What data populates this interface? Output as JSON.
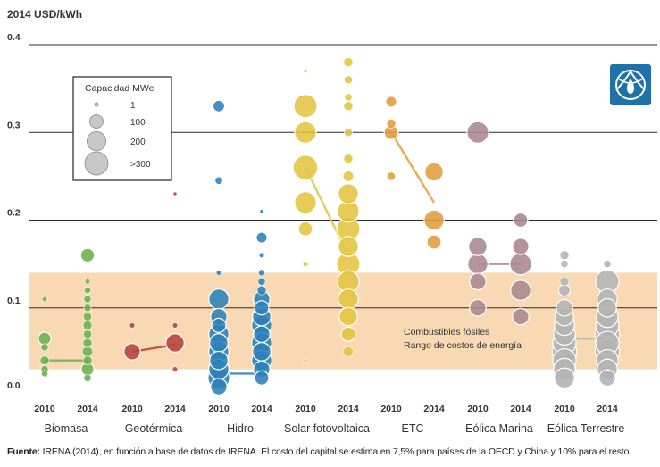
{
  "chart_data": {
    "type": "scatter",
    "unit_label": "2014 USD/kWh",
    "ylim": [
      0,
      0.4
    ],
    "yticks": [
      {
        "value": 0.4,
        "label": "0.4"
      },
      {
        "value": 0.3,
        "label": "0.3"
      },
      {
        "value": 0.2,
        "label": "0.2"
      },
      {
        "value": 0.1,
        "label": "0.1"
      },
      {
        "value": 0.0,
        "label": "0.0"
      }
    ],
    "grid": true,
    "fossil_band": {
      "range": [
        0.03,
        0.14
      ],
      "color": "#f8d9b4",
      "label_line1": "Combustibles fósiles",
      "label_line2": "Rango de costos de energía"
    },
    "legend": {
      "title": "Capacidad MWe",
      "placement": "top-left",
      "entries": [
        {
          "label": "1",
          "mwe": 1
        },
        {
          "label": "100",
          "mwe": 100
        },
        {
          "label": "200",
          "mwe": 200
        },
        {
          "label": ">300",
          "mwe": 300
        }
      ]
    },
    "categories": [
      {
        "name": "Biomasa",
        "color": "#6ab04c",
        "years": [
          "2010",
          "2014"
        ],
        "weighted_avg": [
          0.04,
          0.04
        ],
        "points_2010": [
          [
            0.11,
            20
          ],
          [
            0.065,
            120
          ],
          [
            0.055,
            40
          ],
          [
            0.04,
            60
          ],
          [
            0.03,
            40
          ],
          [
            0.025,
            30
          ]
        ],
        "points_2014": [
          [
            0.16,
            140
          ],
          [
            0.13,
            20
          ],
          [
            0.12,
            30
          ],
          [
            0.11,
            40
          ],
          [
            0.1,
            40
          ],
          [
            0.09,
            50
          ],
          [
            0.08,
            60
          ],
          [
            0.07,
            50
          ],
          [
            0.06,
            60
          ],
          [
            0.05,
            80
          ],
          [
            0.04,
            60
          ],
          [
            0.03,
            120
          ],
          [
            0.02,
            40
          ]
        ]
      },
      {
        "name": "Geotérmica",
        "color": "#b5423d",
        "years": [
          "2010",
          "2014"
        ],
        "weighted_avg": [
          0.05,
          0.058
        ],
        "points_2010": [
          [
            0.08,
            20
          ],
          [
            0.05,
            200
          ]
        ],
        "points_2014": [
          [
            0.08,
            20
          ],
          [
            0.06,
            250
          ],
          [
            0.03,
            20
          ],
          [
            0.23,
            10
          ]
        ]
      },
      {
        "name": "Hidro",
        "color": "#2b7fb8",
        "years": [
          "2010",
          "2014"
        ],
        "weighted_avg": [
          0.025,
          0.025
        ],
        "points_2010": [
          [
            0.33,
            100
          ],
          [
            0.245,
            40
          ],
          [
            0.14,
            20
          ],
          [
            0.11,
            300
          ],
          [
            0.09,
            200
          ],
          [
            0.08,
            150
          ],
          [
            0.07,
            300
          ],
          [
            0.06,
            250
          ],
          [
            0.05,
            300
          ],
          [
            0.04,
            250
          ],
          [
            0.03,
            300
          ],
          [
            0.02,
            350
          ],
          [
            0.01,
            200
          ]
        ],
        "points_2014": [
          [
            0.21,
            10
          ],
          [
            0.18,
            80
          ],
          [
            0.16,
            20
          ],
          [
            0.14,
            30
          ],
          [
            0.13,
            40
          ],
          [
            0.12,
            60
          ],
          [
            0.11,
            200
          ],
          [
            0.1,
            150
          ],
          [
            0.09,
            250
          ],
          [
            0.08,
            300
          ],
          [
            0.07,
            200
          ],
          [
            0.06,
            300
          ],
          [
            0.05,
            250
          ],
          [
            0.04,
            300
          ],
          [
            0.03,
            200
          ],
          [
            0.02,
            150
          ]
        ]
      },
      {
        "name": "Solar fotovoltaica",
        "color": "#e2c440",
        "years": [
          "2010",
          "2014"
        ],
        "weighted_avg": [
          0.26,
          0.16
        ],
        "points_2010": [
          [
            0.37,
            10
          ],
          [
            0.33,
            400
          ],
          [
            0.3,
            350
          ],
          [
            0.26,
            450
          ],
          [
            0.22,
            350
          ],
          [
            0.19,
            150
          ],
          [
            0.15,
            20
          ],
          [
            0.04,
            10
          ]
        ],
        "points_2014": [
          [
            0.38,
            60
          ],
          [
            0.36,
            50
          ],
          [
            0.34,
            40
          ],
          [
            0.33,
            60
          ],
          [
            0.3,
            50
          ],
          [
            0.27,
            60
          ],
          [
            0.25,
            80
          ],
          [
            0.23,
            300
          ],
          [
            0.21,
            350
          ],
          [
            0.19,
            400
          ],
          [
            0.17,
            300
          ],
          [
            0.15,
            400
          ],
          [
            0.13,
            350
          ],
          [
            0.11,
            300
          ],
          [
            0.09,
            250
          ],
          [
            0.07,
            150
          ],
          [
            0.05,
            80
          ]
        ]
      },
      {
        "name": "ETC",
        "color": "#e29c3c",
        "years": [
          "2010",
          "2014"
        ],
        "weighted_avg": [
          0.3,
          0.22
        ],
        "points_2010": [
          [
            0.335,
            80
          ],
          [
            0.31,
            60
          ],
          [
            0.3,
            150
          ],
          [
            0.25,
            50
          ]
        ],
        "points_2014": [
          [
            0.255,
            250
          ],
          [
            0.2,
            300
          ],
          [
            0.175,
            150
          ]
        ]
      },
      {
        "name": "Eólica Marina",
        "color": "#a8878f",
        "years": [
          "2010",
          "2014"
        ],
        "weighted_avg": [
          0.15,
          0.15
        ],
        "points_2010": [
          [
            0.3,
            350
          ],
          [
            0.17,
            250
          ],
          [
            0.15,
            300
          ],
          [
            0.13,
            200
          ],
          [
            0.1,
            200
          ]
        ],
        "points_2014": [
          [
            0.2,
            150
          ],
          [
            0.17,
            200
          ],
          [
            0.15,
            350
          ],
          [
            0.12,
            300
          ],
          [
            0.09,
            200
          ]
        ]
      },
      {
        "name": "Eólica Terrestre",
        "color": "#b3b3b3",
        "years": [
          "2010",
          "2014"
        ],
        "weighted_avg": [
          0.065,
          0.065
        ],
        "points_2010": [
          [
            0.16,
            60
          ],
          [
            0.15,
            40
          ],
          [
            0.13,
            60
          ],
          [
            0.12,
            100
          ],
          [
            0.1,
            200
          ],
          [
            0.09,
            250
          ],
          [
            0.08,
            300
          ],
          [
            0.07,
            350
          ],
          [
            0.06,
            400
          ],
          [
            0.05,
            450
          ],
          [
            0.04,
            400
          ],
          [
            0.03,
            350
          ],
          [
            0.02,
            300
          ]
        ],
        "points_2014": [
          [
            0.15,
            40
          ],
          [
            0.13,
            400
          ],
          [
            0.11,
            300
          ],
          [
            0.1,
            250
          ],
          [
            0.09,
            350
          ],
          [
            0.08,
            400
          ],
          [
            0.07,
            450
          ],
          [
            0.06,
            400
          ],
          [
            0.05,
            450
          ],
          [
            0.04,
            350
          ],
          [
            0.03,
            300
          ],
          [
            0.02,
            200
          ]
        ]
      }
    ]
  },
  "logo": {
    "name": "IRENA logo",
    "color": "#1f72a8"
  },
  "source": {
    "prefix": "Fuente:",
    "text": " IRENA (2014), en función a base de datos de IRENA. El costo del capital se estima en 7,5% para países de la OECD y China y 10% para el resto."
  }
}
